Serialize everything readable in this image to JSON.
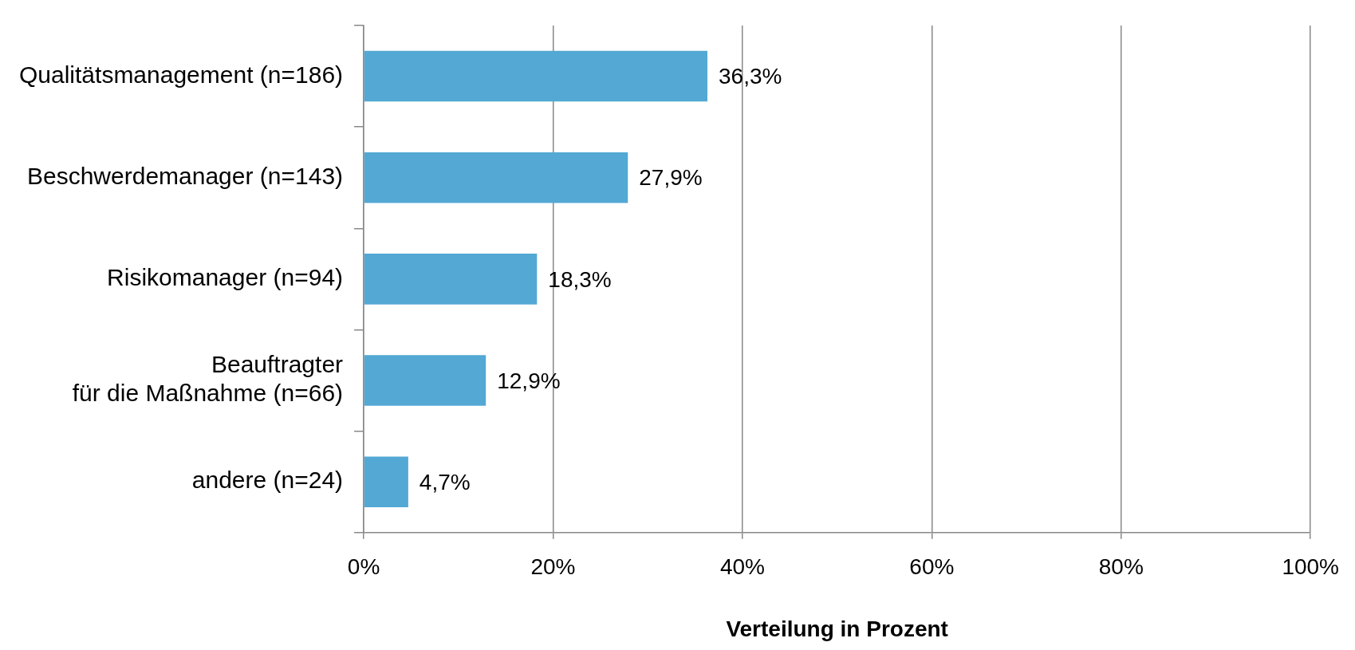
{
  "chart_data": {
    "type": "bar",
    "orientation": "horizontal",
    "xlabel": "Verteilung in Prozent",
    "categories": [
      "Qualitätsmanagement (n=186)",
      "Beschwerdemanager (n=143)",
      "Risikomanager (n=94)",
      "Beauftragter\nfür die Maßnahme (n=66)",
      "andere (n=24)"
    ],
    "values": [
      36.3,
      27.9,
      18.3,
      12.9,
      4.7
    ],
    "value_labels": [
      "36,3%",
      "27,9%",
      "18,3%",
      "12,9%",
      "4,7%"
    ],
    "color": "#53a8d4",
    "xlim": [
      0,
      100
    ],
    "xticks": [
      {
        "value": 0,
        "label": "0%"
      },
      {
        "value": 20,
        "label": "20%"
      },
      {
        "value": 40,
        "label": "40%"
      },
      {
        "value": 60,
        "label": "60%"
      },
      {
        "value": 80,
        "label": "80%"
      },
      {
        "value": 100,
        "label": "100%"
      }
    ],
    "grid": "x",
    "legend": false
  }
}
